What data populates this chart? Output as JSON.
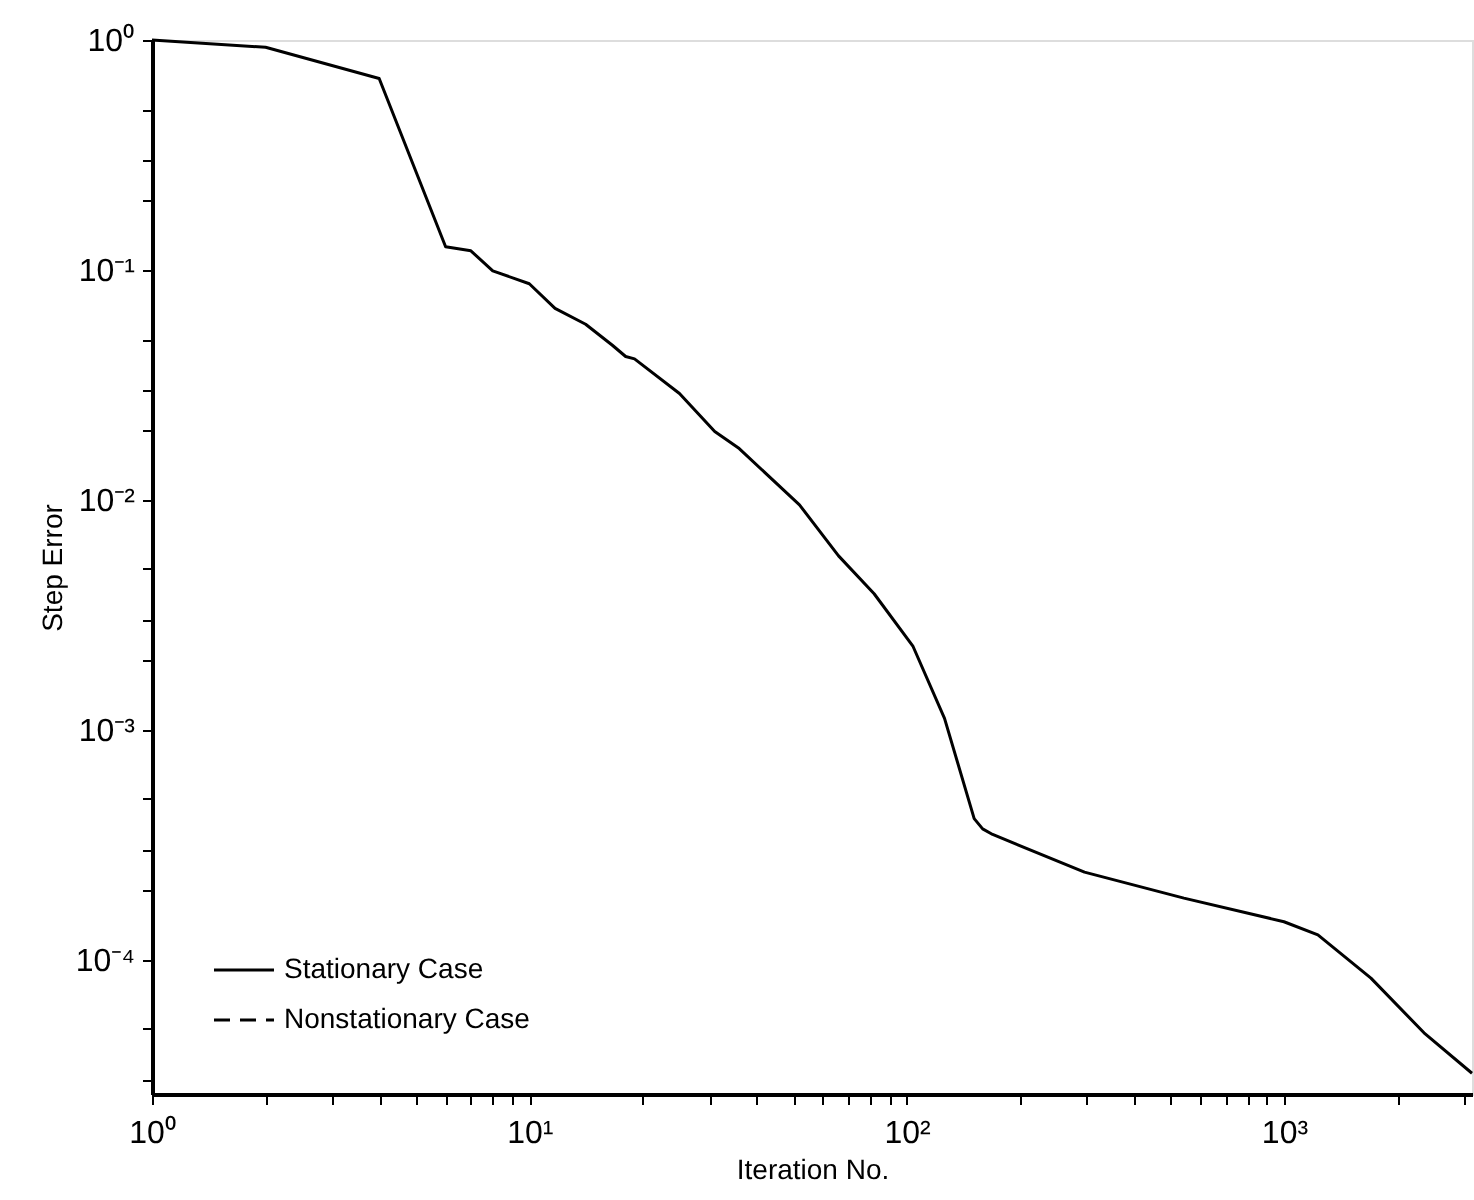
{
  "chart_data": {
    "type": "line",
    "xlabel": "Iteration No.",
    "ylabel": "Step Error",
    "log": "xy",
    "grid": false,
    "legend": "bottom left",
    "xlim": [
      1,
      3150
    ],
    "ylim": [
      2.6e-05,
      1
    ],
    "xticks": [
      {
        "value": 1,
        "label": "10⁰"
      },
      {
        "value": 2,
        "label": null
      },
      {
        "value": 3,
        "label": null
      },
      {
        "value": 4,
        "label": null
      },
      {
        "value": 5,
        "label": null
      },
      {
        "value": 6,
        "label": null
      },
      {
        "value": 7,
        "label": null
      },
      {
        "value": 8,
        "label": null
      },
      {
        "value": 9,
        "label": null
      },
      {
        "value": 10,
        "label": "10¹"
      },
      {
        "value": 20,
        "label": null
      },
      {
        "value": 30,
        "label": null
      },
      {
        "value": 40,
        "label": null
      },
      {
        "value": 50,
        "label": null
      },
      {
        "value": 60,
        "label": null
      },
      {
        "value": 70,
        "label": null
      },
      {
        "value": 80,
        "label": null
      },
      {
        "value": 90,
        "label": null
      },
      {
        "value": 100,
        "label": "10²"
      },
      {
        "value": 200,
        "label": null
      },
      {
        "value": 300,
        "label": null
      },
      {
        "value": 400,
        "label": null
      },
      {
        "value": 500,
        "label": null
      },
      {
        "value": 600,
        "label": null
      },
      {
        "value": 700,
        "label": null
      },
      {
        "value": 800,
        "label": null
      },
      {
        "value": 900,
        "label": null
      },
      {
        "value": 1000,
        "label": "10³"
      },
      {
        "value": 2000,
        "label": null
      },
      {
        "value": 3000,
        "label": null
      }
    ],
    "yticks": [
      {
        "value": 1,
        "label": "10⁰"
      },
      {
        "value": 0.1,
        "label": "10⁻¹"
      },
      {
        "value": 0.01,
        "label": "10⁻²"
      },
      {
        "value": 0.001,
        "label": "10⁻³"
      },
      {
        "value": 0.0001,
        "label": "10⁻⁴"
      },
      {
        "value": 0.5,
        "label": null
      },
      {
        "value": 0.3,
        "label": null
      },
      {
        "value": 0.2,
        "label": null
      },
      {
        "value": 0.05,
        "label": null
      },
      {
        "value": 0.03,
        "label": null
      },
      {
        "value": 0.02,
        "label": null
      },
      {
        "value": 0.005,
        "label": null
      },
      {
        "value": 0.003,
        "label": null
      },
      {
        "value": 0.002,
        "label": null
      },
      {
        "value": 0.0005,
        "label": null
      },
      {
        "value": 0.0003,
        "label": null
      },
      {
        "value": 0.0002,
        "label": null
      },
      {
        "value": 5e-05,
        "label": null
      },
      {
        "value": 3e-05,
        "label": null
      }
    ],
    "x": [
      1,
      2,
      4,
      6,
      7,
      8,
      10,
      11.7,
      14.1,
      16.6,
      18,
      19,
      25,
      31,
      36,
      52,
      66,
      82,
      104,
      126,
      151,
      159,
      169,
      296,
      543,
      1000,
      1230,
      1700,
      2350,
      3150
    ],
    "series": [
      {
        "name": "Stationary Case",
        "color": "#000000",
        "line_style": "solid",
        "values": [
          1.0,
          0.93,
          0.68,
          0.126,
          0.121,
          0.099,
          0.087,
          0.068,
          0.058,
          0.047,
          0.042,
          0.041,
          0.029,
          0.0198,
          0.0167,
          0.0095,
          0.0057,
          0.0039,
          0.0023,
          0.00112,
          0.00041,
          0.00037,
          0.00035,
          0.00024,
          0.000185,
          0.000146,
          0.000128,
          8.3e-05,
          4.8e-05,
          3.2e-05
        ]
      },
      {
        "name": "Nonstationary Case",
        "color": "#000000",
        "line_style": "dashed",
        "values": [
          null,
          null,
          null,
          null,
          null,
          null,
          null,
          null,
          null,
          null,
          null,
          null,
          null,
          null,
          null,
          null,
          null,
          null,
          null,
          null,
          null,
          null,
          null,
          null,
          null,
          null,
          null,
          null,
          null,
          null
        ]
      }
    ]
  }
}
